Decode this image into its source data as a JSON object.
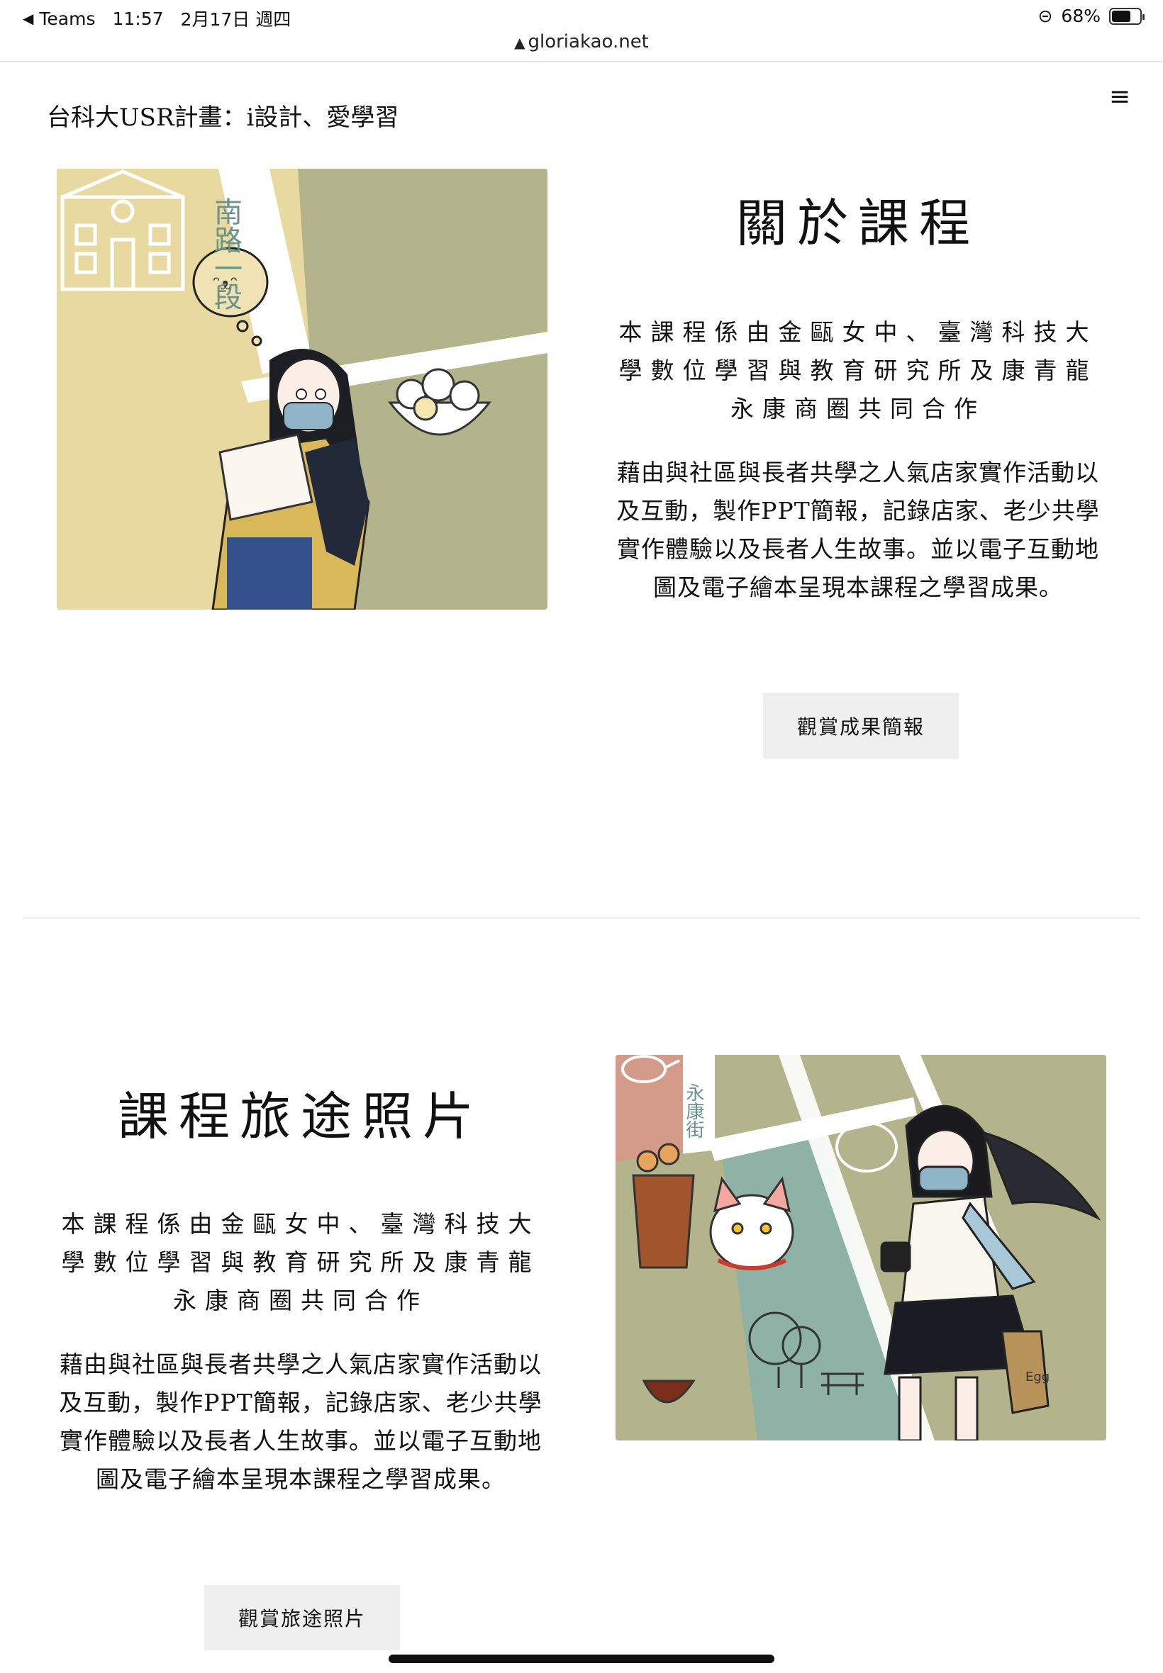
{
  "status_bar": {
    "back_label": "◀",
    "app": "Teams",
    "time": "11:57",
    "date": "2月17日 週四",
    "battery_text": "68%",
    "battery_level": 0.68,
    "url": "gloriakao.net"
  },
  "header": {
    "site_title": "台科大USR計畫：i設計、愛學習",
    "menu_icon": "≡"
  },
  "section_about": {
    "heading": "關於課程",
    "para1": "本課程係由金甌女中、臺灣科技大學數位學習與教育研究所及康青龍永康商圈共同合作",
    "para2": "藉由與社區與長者共學之人氣店家實作活動以及互動，製作PPT簡報，記錄店家、老少共學實作體驗以及長者人生故事。並以電子互動地圖及電子繪本呈現本課程之學習成果。",
    "button": "觀賞成果簡報",
    "illustration": {
      "sign_text": "南路一段"
    }
  },
  "section_photos": {
    "heading": "課程旅途照片",
    "para1": "本課程係由金甌女中、臺灣科技大學數位學習與教育研究所及康青龍永康商圈共同合作",
    "para2": "藉由與社區與長者共學之人氣店家實作活動以及互動，製作PPT簡報，記錄店家、老少共學實作體驗以及長者人生故事。並以電子互動地圖及電子繪本呈現本課程之學習成果。",
    "button": "觀賞旅途照片",
    "illustration": {
      "sign_text": "永康街",
      "bag_text": "Egg"
    }
  },
  "colors": {
    "sand": "#e8d9a0",
    "olive": "#b4b48c",
    "teal": "#8fb2a6",
    "terracotta": "#d49a8a",
    "button_bg": "#efefef"
  }
}
